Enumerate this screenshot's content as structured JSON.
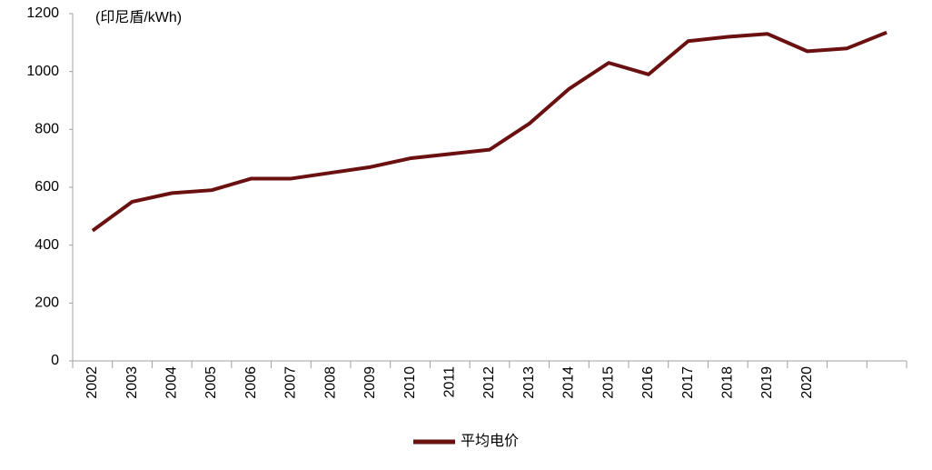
{
  "chart_data": {
    "type": "line",
    "annotation": "(印尼盾/kWh)",
    "categories": [
      "2002",
      "2003",
      "2004",
      "2005",
      "2006",
      "2007",
      "2008",
      "2009",
      "2010",
      "2011",
      "2012",
      "2013",
      "2014",
      "2015",
      "2016",
      "2017",
      "2018",
      "2019",
      "2020",
      null,
      null
    ],
    "series": [
      {
        "name": "平均电价",
        "color": "#6b1010",
        "values": [
          450,
          550,
          580,
          590,
          630,
          630,
          650,
          670,
          700,
          715,
          730,
          820,
          940,
          1030,
          990,
          1105,
          1120,
          1130,
          1070,
          1080,
          1135
        ]
      }
    ],
    "ylim": [
      0,
      1200
    ],
    "yticks": [
      0,
      200,
      400,
      600,
      800,
      1000,
      1200
    ],
    "grid": false,
    "legend": "bottom"
  }
}
